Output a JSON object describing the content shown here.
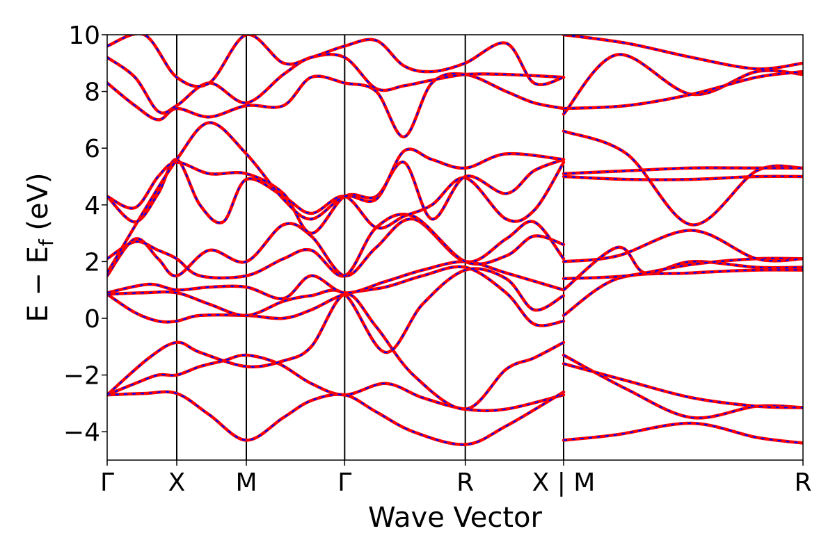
{
  "chart_data": {
    "type": "line",
    "title": "",
    "xlabel": "Wave Vector",
    "ylabel_parts": {
      "main": "E − E",
      "sub": "f",
      "unit": " (eV)"
    },
    "ylim": [
      -5,
      10
    ],
    "xlim": [
      0,
      7.5
    ],
    "yticks": [
      -4,
      -2,
      0,
      2,
      4,
      6,
      8,
      10
    ],
    "ytick_labels": [
      "−4",
      "−2",
      "0",
      "2",
      "4",
      "6",
      "8",
      "10"
    ],
    "kpoints": [
      {
        "label": "Γ",
        "x": 0
      },
      {
        "label": "X",
        "x": 0.75
      },
      {
        "label": "M",
        "x": 1.5
      },
      {
        "label": "Γ",
        "x": 2.56
      },
      {
        "label": "R",
        "x": 3.86
      },
      {
        "label": "X | M",
        "x": 4.92
      },
      {
        "label": "R",
        "x": 7.5
      }
    ],
    "vlines": [
      0.75,
      1.5,
      2.56,
      3.86,
      4.92
    ],
    "series_styles": [
      {
        "name": "",
        "color": "#ff0000",
        "style": "solid"
      },
      {
        "name": "",
        "color": "#0000ff",
        "style": "dashed"
      }
    ],
    "bands": [
      [
        [
          0,
          -2.7
        ],
        [
          0.3,
          -2.3
        ],
        [
          0.55,
          -2.0
        ],
        [
          0.75,
          -2.0
        ],
        [
          1.0,
          -1.7
        ],
        [
          1.25,
          -1.5
        ],
        [
          1.5,
          -1.3
        ],
        [
          1.85,
          -1.6
        ],
        [
          2.2,
          -2.3
        ],
        [
          2.56,
          -2.7
        ],
        [
          3.0,
          -2.3
        ],
        [
          3.4,
          -2.8
        ],
        [
          3.86,
          -3.2
        ],
        [
          4.3,
          -3.2
        ],
        [
          4.92,
          -2.7
        ]
      ],
      [
        [
          0,
          -2.7
        ],
        [
          0.4,
          -2.65
        ],
        [
          0.75,
          -2.65
        ],
        [
          1.1,
          -3.4
        ],
        [
          1.5,
          -4.3
        ],
        [
          1.9,
          -3.5
        ],
        [
          2.2,
          -2.9
        ],
        [
          2.56,
          -2.7
        ],
        [
          2.9,
          -3.3
        ],
        [
          3.3,
          -4.0
        ],
        [
          3.86,
          -4.45
        ],
        [
          4.3,
          -3.8
        ],
        [
          4.92,
          -2.6
        ]
      ],
      [
        [
          0,
          -2.7
        ],
        [
          0.45,
          -1.4
        ],
        [
          0.75,
          -0.85
        ],
        [
          1.0,
          -1.2
        ],
        [
          1.5,
          -1.7
        ],
        [
          1.9,
          -1.5
        ],
        [
          2.2,
          -1.0
        ],
        [
          2.56,
          0.85
        ],
        [
          2.9,
          -0.3
        ],
        [
          3.3,
          -2.0
        ],
        [
          3.86,
          -3.2
        ],
        [
          4.3,
          -1.8
        ],
        [
          4.6,
          -1.4
        ],
        [
          4.92,
          -0.85
        ]
      ],
      [
        [
          0,
          0.85
        ],
        [
          0.3,
          0.2
        ],
        [
          0.55,
          -0.1
        ],
        [
          0.75,
          -0.1
        ],
        [
          1.0,
          0.1
        ],
        [
          1.5,
          0.1
        ],
        [
          1.9,
          0.0
        ],
        [
          2.2,
          0.3
        ],
        [
          2.56,
          0.85
        ],
        [
          3.0,
          1.1
        ],
        [
          3.4,
          1.5
        ],
        [
          3.86,
          1.8
        ],
        [
          4.3,
          0.9
        ],
        [
          4.6,
          -0.2
        ],
        [
          4.92,
          -0.1
        ]
      ],
      [
        [
          0,
          0.85
        ],
        [
          0.4,
          0.9
        ],
        [
          0.75,
          0.9
        ],
        [
          1.1,
          0.5
        ],
        [
          1.5,
          0.1
        ],
        [
          1.9,
          0.6
        ],
        [
          2.2,
          0.8
        ],
        [
          2.56,
          0.85
        ],
        [
          3.0,
          -1.2
        ],
        [
          3.4,
          0.5
        ],
        [
          3.86,
          1.7
        ],
        [
          4.3,
          1.4
        ],
        [
          4.6,
          0.3
        ],
        [
          4.92,
          0.8
        ]
      ],
      [
        [
          0,
          0.9
        ],
        [
          0.45,
          1.2
        ],
        [
          0.75,
          1.0
        ],
        [
          1.1,
          1.1
        ],
        [
          1.5,
          1.1
        ],
        [
          1.9,
          0.7
        ],
        [
          2.2,
          1.5
        ],
        [
          2.56,
          0.9
        ],
        [
          3.0,
          1.3
        ],
        [
          3.4,
          1.7
        ],
        [
          3.86,
          2.0
        ],
        [
          4.3,
          1.6
        ],
        [
          4.92,
          1.0
        ]
      ],
      [
        [
          0,
          1.5
        ],
        [
          0.3,
          2.8
        ],
        [
          0.55,
          2.1
        ],
        [
          0.75,
          1.5
        ],
        [
          1.1,
          2.4
        ],
        [
          1.5,
          2.0
        ],
        [
          1.9,
          3.3
        ],
        [
          2.2,
          2.9
        ],
        [
          2.56,
          1.5
        ],
        [
          2.9,
          2.5
        ],
        [
          3.3,
          3.5
        ],
        [
          3.86,
          2.0
        ],
        [
          4.3,
          2.8
        ],
        [
          4.6,
          3.4
        ],
        [
          4.92,
          2.1
        ]
      ],
      [
        [
          0,
          2.1
        ],
        [
          0.3,
          2.7
        ],
        [
          0.55,
          2.4
        ],
        [
          0.75,
          2.1
        ],
        [
          1.0,
          1.5
        ],
        [
          1.5,
          1.5
        ],
        [
          1.9,
          2.1
        ],
        [
          2.2,
          2.4
        ],
        [
          2.56,
          1.5
        ],
        [
          2.9,
          3.2
        ],
        [
          3.3,
          3.6
        ],
        [
          3.86,
          2.0
        ],
        [
          4.3,
          2.2
        ],
        [
          4.6,
          2.9
        ],
        [
          4.92,
          2.6
        ]
      ],
      [
        [
          0,
          4.3
        ],
        [
          0.3,
          3.4
        ],
        [
          0.55,
          4.4
        ],
        [
          0.75,
          5.6
        ],
        [
          1.0,
          4.0
        ],
        [
          1.25,
          3.4
        ],
        [
          1.5,
          4.9
        ],
        [
          1.9,
          4.3
        ],
        [
          2.2,
          3.7
        ],
        [
          2.56,
          4.3
        ],
        [
          2.9,
          3.2
        ],
        [
          3.2,
          3.6
        ],
        [
          3.5,
          4.0
        ],
        [
          3.86,
          4.95
        ],
        [
          4.3,
          3.5
        ],
        [
          4.6,
          3.8
        ],
        [
          4.92,
          5.5
        ]
      ],
      [
        [
          0,
          4.3
        ],
        [
          0.3,
          3.9
        ],
        [
          0.55,
          5.0
        ],
        [
          0.75,
          5.5
        ],
        [
          1.1,
          5.1
        ],
        [
          1.5,
          5.1
        ],
        [
          1.9,
          4.4
        ],
        [
          2.2,
          3.0
        ],
        [
          2.56,
          4.3
        ],
        [
          2.9,
          4.3
        ],
        [
          3.2,
          5.5
        ],
        [
          3.5,
          3.5
        ],
        [
          3.86,
          5.0
        ],
        [
          4.3,
          4.4
        ],
        [
          4.6,
          5.2
        ],
        [
          4.92,
          5.6
        ]
      ],
      [
        [
          0,
          1.6
        ],
        [
          0.4,
          3.8
        ],
        [
          0.75,
          5.6
        ],
        [
          1.1,
          6.9
        ],
        [
          1.5,
          5.8
        ],
        [
          1.9,
          4.2
        ],
        [
          2.2,
          3.5
        ],
        [
          2.56,
          4.3
        ],
        [
          2.9,
          4.2
        ],
        [
          3.2,
          5.9
        ],
        [
          3.5,
          5.6
        ],
        [
          3.86,
          5.3
        ],
        [
          4.3,
          5.8
        ],
        [
          4.92,
          5.6
        ]
      ],
      [
        [
          0,
          8.3
        ],
        [
          0.3,
          7.5
        ],
        [
          0.55,
          7.0
        ],
        [
          0.75,
          7.4
        ],
        [
          1.1,
          7.1
        ],
        [
          1.5,
          7.5
        ],
        [
          1.9,
          7.5
        ],
        [
          2.2,
          8.5
        ],
        [
          2.56,
          8.3
        ],
        [
          2.9,
          8.0
        ],
        [
          3.2,
          6.4
        ],
        [
          3.5,
          8.3
        ],
        [
          3.86,
          8.6
        ],
        [
          4.3,
          8.0
        ],
        [
          4.6,
          7.6
        ],
        [
          4.92,
          7.4
        ]
      ],
      [
        [
          0,
          9.2
        ],
        [
          0.3,
          8.5
        ],
        [
          0.55,
          7.3
        ],
        [
          0.75,
          7.5
        ],
        [
          1.1,
          8.3
        ],
        [
          1.5,
          7.6
        ],
        [
          1.9,
          8.6
        ],
        [
          2.2,
          9.2
        ],
        [
          2.56,
          9.2
        ],
        [
          2.9,
          8.1
        ],
        [
          3.2,
          8.2
        ],
        [
          3.5,
          8.4
        ],
        [
          3.86,
          8.6
        ],
        [
          4.3,
          8.6
        ],
        [
          4.92,
          8.5
        ]
      ],
      [
        [
          0,
          9.6
        ],
        [
          0.4,
          10.0
        ],
        [
          0.75,
          8.5
        ],
        [
          1.1,
          8.3
        ],
        [
          1.5,
          10.0
        ],
        [
          1.9,
          9.0
        ],
        [
          2.2,
          9.2
        ],
        [
          2.56,
          9.6
        ],
        [
          2.9,
          9.8
        ],
        [
          3.2,
          8.9
        ],
        [
          3.5,
          8.7
        ],
        [
          3.86,
          9.0
        ],
        [
          4.3,
          9.7
        ],
        [
          4.6,
          8.3
        ],
        [
          4.92,
          8.5
        ]
      ],
      [
        [
          4.92,
          -4.3
        ],
        [
          5.5,
          -4.1
        ],
        [
          6.3,
          -3.7
        ],
        [
          7.0,
          -4.2
        ],
        [
          7.5,
          -4.4
        ]
      ],
      [
        [
          4.92,
          -1.3
        ],
        [
          5.6,
          -2.5
        ],
        [
          6.3,
          -3.5
        ],
        [
          7.0,
          -3.1
        ],
        [
          7.5,
          -3.15
        ]
      ],
      [
        [
          4.92,
          -1.6
        ],
        [
          5.6,
          -2.2
        ],
        [
          6.3,
          -2.8
        ],
        [
          7.0,
          -3.1
        ],
        [
          7.5,
          -3.15
        ]
      ],
      [
        [
          4.92,
          0.1
        ],
        [
          5.5,
          1.4
        ],
        [
          6.3,
          1.6
        ],
        [
          7.0,
          1.7
        ],
        [
          7.5,
          1.7
        ]
      ],
      [
        [
          4.92,
          1.0
        ],
        [
          5.5,
          2.5
        ],
        [
          5.8,
          1.6
        ],
        [
          6.3,
          2.0
        ],
        [
          7.0,
          1.8
        ],
        [
          7.5,
          1.8
        ]
      ],
      [
        [
          4.92,
          1.4
        ],
        [
          5.6,
          1.5
        ],
        [
          6.3,
          1.9
        ],
        [
          7.0,
          2.1
        ],
        [
          7.5,
          2.1
        ]
      ],
      [
        [
          4.92,
          2.0
        ],
        [
          5.5,
          2.2
        ],
        [
          6.3,
          3.1
        ],
        [
          7.0,
          2.1
        ],
        [
          7.5,
          2.1
        ]
      ],
      [
        [
          4.92,
          5.0
        ],
        [
          5.6,
          4.9
        ],
        [
          6.3,
          4.9
        ],
        [
          7.0,
          5.0
        ],
        [
          7.5,
          5.0
        ]
      ],
      [
        [
          4.92,
          6.6
        ],
        [
          5.6,
          5.8
        ],
        [
          6.3,
          3.3
        ],
        [
          7.0,
          5.2
        ],
        [
          7.5,
          5.3
        ]
      ],
      [
        [
          4.92,
          5.1
        ],
        [
          5.6,
          5.2
        ],
        [
          6.3,
          5.3
        ],
        [
          7.0,
          5.3
        ],
        [
          7.5,
          5.3
        ]
      ],
      [
        [
          4.92,
          7.2
        ],
        [
          5.5,
          9.3
        ],
        [
          6.3,
          7.9
        ],
        [
          7.0,
          8.7
        ],
        [
          7.5,
          8.6
        ]
      ],
      [
        [
          4.92,
          7.4
        ],
        [
          5.6,
          7.5
        ],
        [
          6.3,
          7.9
        ],
        [
          7.0,
          8.5
        ],
        [
          7.5,
          8.7
        ]
      ],
      [
        [
          4.92,
          10.0
        ],
        [
          5.6,
          9.7
        ],
        [
          6.3,
          9.2
        ],
        [
          7.0,
          8.8
        ],
        [
          7.5,
          9.0
        ]
      ]
    ]
  }
}
